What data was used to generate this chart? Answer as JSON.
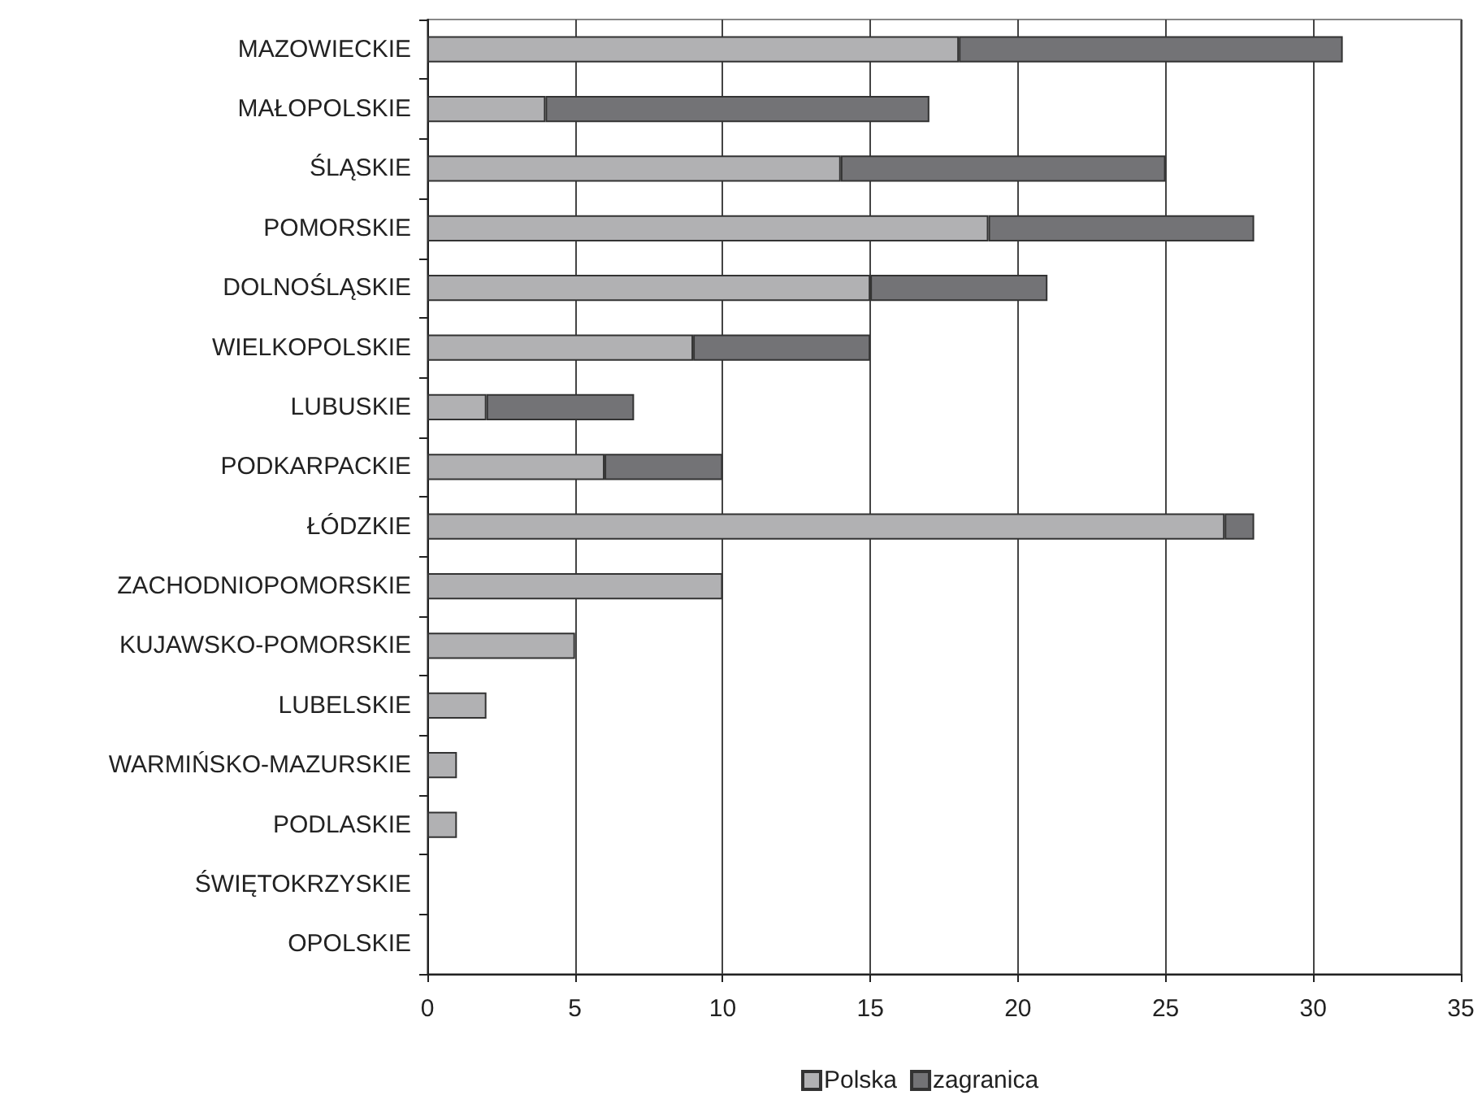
{
  "chart_data": {
    "type": "bar",
    "orientation": "horizontal",
    "stacked": true,
    "categories": [
      "MAZOWIECKIE",
      "MAŁOPOLSKIE",
      "ŚLĄSKIE",
      "POMORSKIE",
      "DOLNOŚLĄSKIE",
      "WIELKOPOLSKIE",
      "LUBUSKIE",
      "PODKARPACKIE",
      "ŁÓDZKIE",
      "ZACHODNIOPOMORSKIE",
      "KUJAWSKO-POMORSKIE",
      "LUBELSKIE",
      "WARMIŃSKO-MAZURSKIE",
      "PODLASKIE",
      "ŚWIĘTOKRZYSKIE",
      "OPOLSKIE"
    ],
    "series": [
      {
        "name": "Polska",
        "color": "#b1b1b3",
        "values": [
          18,
          4,
          14,
          19,
          15,
          9,
          2,
          6,
          27,
          10,
          5,
          2,
          1,
          1,
          0,
          0
        ]
      },
      {
        "name": "zagranica",
        "color": "#737376",
        "values": [
          13,
          13,
          11,
          9,
          6,
          6,
          5,
          4,
          1,
          0,
          0,
          0,
          0,
          0,
          0,
          0
        ]
      }
    ],
    "xlim": [
      0,
      35
    ],
    "xticks": [
      0,
      5,
      10,
      15,
      20,
      25,
      30,
      35
    ],
    "grid": "x",
    "legend": "bottom"
  }
}
